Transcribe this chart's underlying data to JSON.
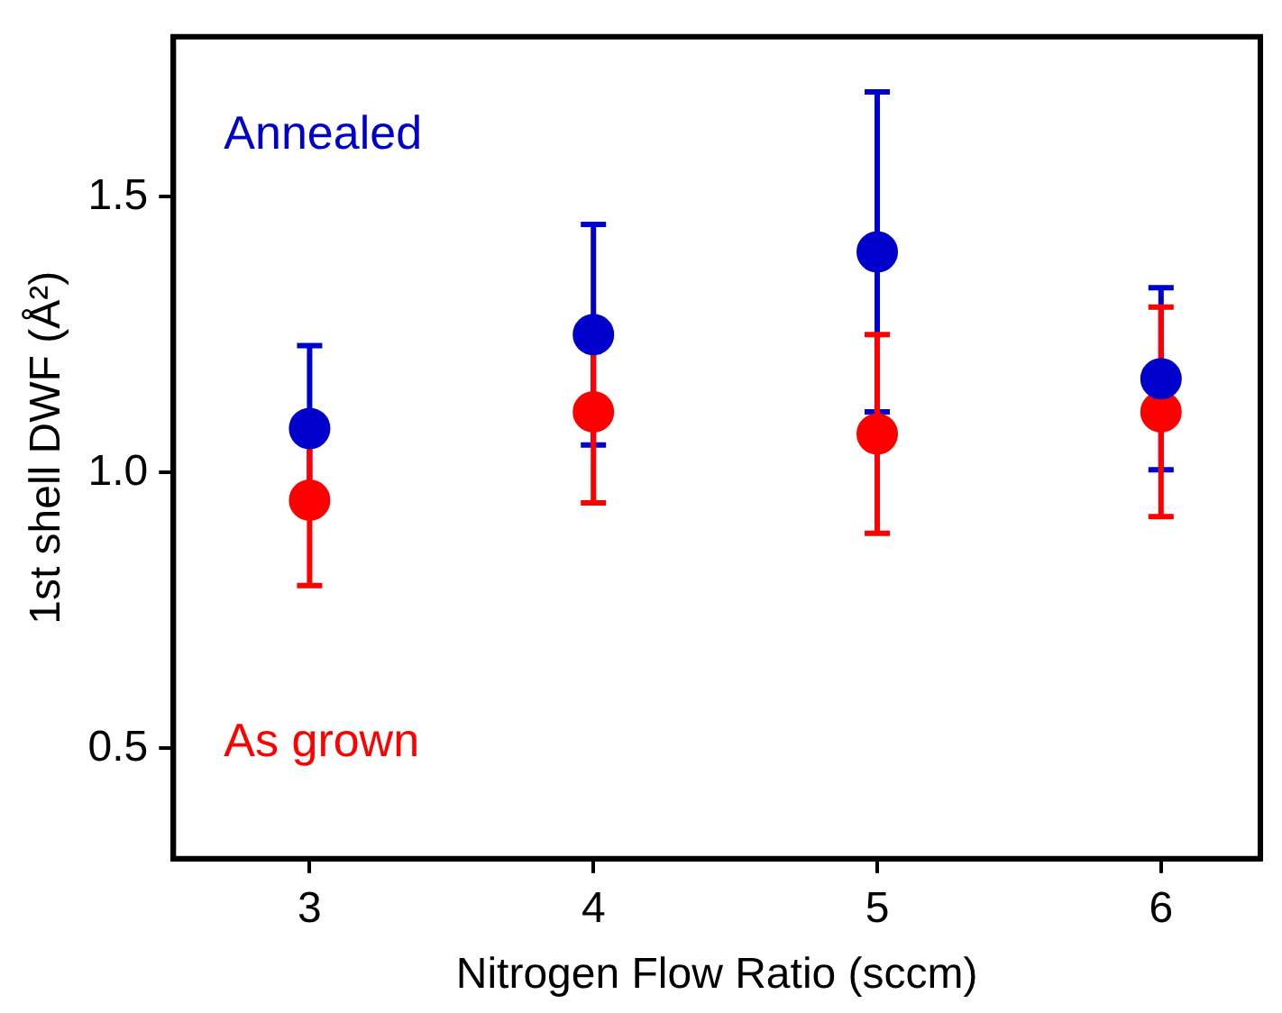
{
  "chart_data": {
    "type": "scatter",
    "xlabel": "Nitrogen Flow Ratio (sccm)",
    "ylabel": "1st shell DWF (Å²)",
    "x": [
      3,
      4,
      5,
      6
    ],
    "xlim": [
      2.52,
      6.35
    ],
    "xticks": [
      3,
      4,
      5,
      6
    ],
    "ylim": [
      0.3,
      1.79
    ],
    "yticks": [
      {
        "value": 0.5,
        "label": "0.5"
      },
      {
        "value": 1,
        "label": "1.0"
      },
      {
        "value": 1.5,
        "label": "1.5"
      }
    ],
    "grid": false,
    "legend": false,
    "marker": "circle",
    "series": [
      {
        "name": "Annealed",
        "color": "#0000cc",
        "values": [
          1.08,
          1.25,
          1.4,
          1.17
        ],
        "errors": [
          0.15,
          0.2,
          0.29,
          0.165
        ]
      },
      {
        "name": "As grown",
        "color": "#ff0000",
        "values": [
          0.95,
          1.11,
          1.07,
          1.11
        ],
        "errors": [
          0.155,
          0.165,
          0.18,
          0.19
        ]
      }
    ]
  }
}
